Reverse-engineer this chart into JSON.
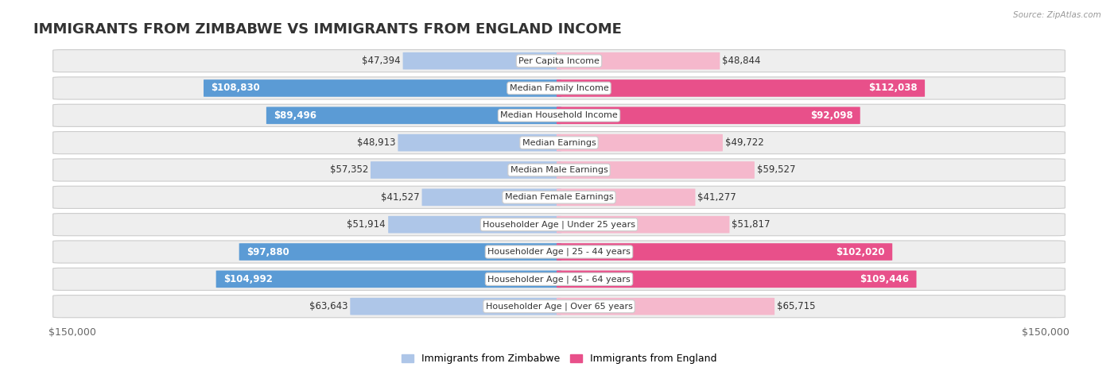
{
  "title": "IMMIGRANTS FROM ZIMBABWE VS IMMIGRANTS FROM ENGLAND INCOME",
  "source": "Source: ZipAtlas.com",
  "categories": [
    "Per Capita Income",
    "Median Family Income",
    "Median Household Income",
    "Median Earnings",
    "Median Male Earnings",
    "Median Female Earnings",
    "Householder Age | Under 25 years",
    "Householder Age | 25 - 44 years",
    "Householder Age | 45 - 64 years",
    "Householder Age | Over 65 years"
  ],
  "zimbabwe_values": [
    47394,
    108830,
    89496,
    48913,
    57352,
    41527,
    51914,
    97880,
    104992,
    63643
  ],
  "england_values": [
    48844,
    112038,
    92098,
    49722,
    59527,
    41277,
    51817,
    102020,
    109446,
    65715
  ],
  "zimbabwe_labels": [
    "$47,394",
    "$108,830",
    "$89,496",
    "$48,913",
    "$57,352",
    "$41,527",
    "$51,914",
    "$97,880",
    "$104,992",
    "$63,643"
  ],
  "england_labels": [
    "$48,844",
    "$112,038",
    "$92,098",
    "$49,722",
    "$59,527",
    "$41,277",
    "$51,817",
    "$102,020",
    "$109,446",
    "$65,715"
  ],
  "zimbabwe_color_light": "#aec6e8",
  "zimbabwe_color_dark": "#5b9bd5",
  "england_color_light": "#f5b8cc",
  "england_color_dark": "#e8508a",
  "max_value": 150000,
  "xlabel_left": "$150,000",
  "xlabel_right": "$150,000",
  "legend_zimbabwe": "Immigrants from Zimbabwe",
  "legend_england": "Immigrants from England",
  "row_bg": "#eeeeee",
  "bar_height": 0.62,
  "title_fontsize": 13,
  "label_fontsize": 8.5,
  "inside_threshold": 75000
}
